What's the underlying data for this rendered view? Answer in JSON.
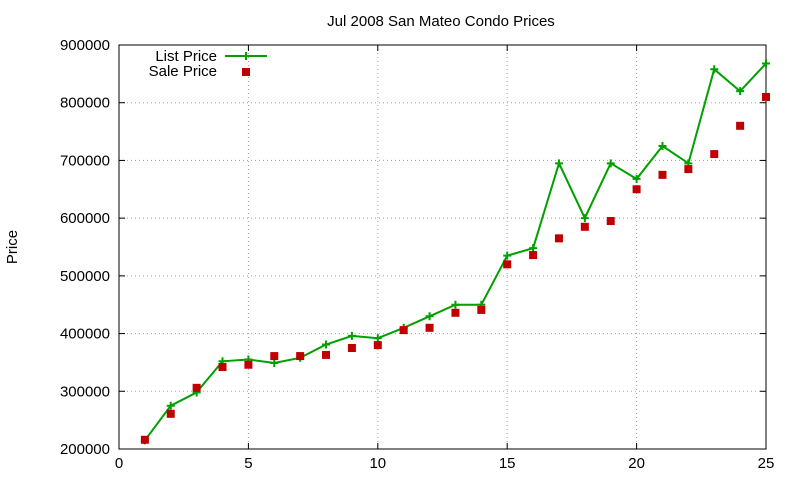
{
  "chart_data": {
    "type": "line",
    "title": "Jul 2008 San Mateo Condo Prices",
    "xlabel": "",
    "ylabel": "Price",
    "xlim": [
      0,
      25
    ],
    "ylim": [
      200000,
      900000
    ],
    "xticks": [
      0,
      5,
      10,
      15,
      20,
      25
    ],
    "yticks": [
      200000,
      300000,
      400000,
      500000,
      600000,
      700000,
      800000,
      900000
    ],
    "xtick_labels": [
      "0",
      "5",
      "10",
      "15",
      "20",
      "25"
    ],
    "ytick_labels": [
      "200000",
      "300000",
      "400000",
      "500000",
      "600000",
      "700000",
      "800000",
      "900000"
    ],
    "grid": true,
    "legend_position": "top-left",
    "x": [
      1,
      2,
      3,
      4,
      5,
      6,
      7,
      8,
      9,
      10,
      11,
      12,
      13,
      14,
      15,
      16,
      17,
      18,
      19,
      20,
      21,
      22,
      23,
      24,
      25
    ],
    "series": [
      {
        "name": "List Price",
        "style": "line-plus",
        "color": "#00a000",
        "values": [
          215000,
          275000,
          298000,
          352000,
          355000,
          349000,
          358000,
          381000,
          396000,
          392000,
          410000,
          430000,
          450000,
          450000,
          535000,
          548000,
          695000,
          600000,
          695000,
          668000,
          725000,
          695000,
          858000,
          820000,
          868000
        ]
      },
      {
        "name": "Sale Price",
        "style": "square-points",
        "color": "#c00000",
        "values": [
          216000,
          261000,
          306000,
          342000,
          346000,
          361000,
          361000,
          363000,
          375000,
          380000,
          406000,
          410000,
          436000,
          441000,
          520000,
          536000,
          565000,
          585000,
          595000,
          650000,
          675000,
          685000,
          711000,
          760000,
          810000
        ]
      }
    ]
  }
}
